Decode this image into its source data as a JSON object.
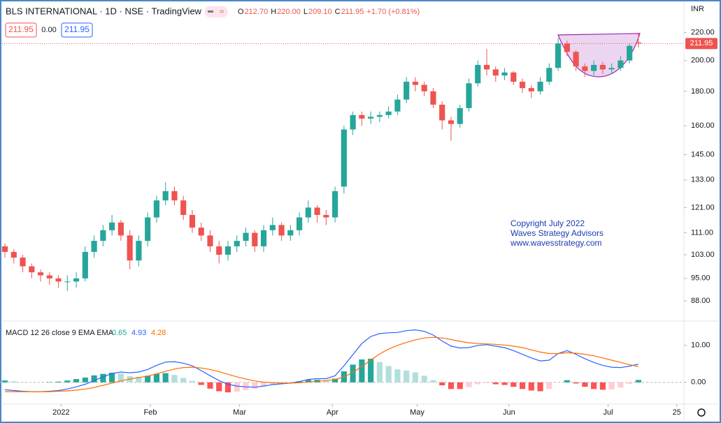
{
  "header": {
    "symbol": "BLS INTERNATIONAL · 1D · NSE · TradingView",
    "ohlc": [
      {
        "key": "O",
        "value": "212.70"
      },
      {
        "key": "H",
        "value": "220.00"
      },
      {
        "key": "L",
        "value": "209.10"
      },
      {
        "key": "C",
        "value": "211.95"
      }
    ],
    "change": "+1.70 (+0.81%)",
    "spread": "0.00",
    "currency": "INR"
  },
  "watermark": [
    "Copyright July 2022",
    "Waves Strategy Advisors",
    "www.wavesstrategy.com"
  ],
  "chart_data": [
    {
      "type": "candlestick",
      "log_scale": true,
      "up_color": "#26a69a",
      "down_color": "#ef5350",
      "price_line_color": "#ef5350",
      "xlim": [
        -0.55,
        76.1
      ],
      "xticks": [
        {
          "value": 6.3,
          "label": "2022"
        },
        {
          "value": 16.3,
          "label": "Feb"
        },
        {
          "value": 26.3,
          "label": "Mar"
        },
        {
          "value": 36.7,
          "label": "Apr"
        },
        {
          "value": 46.2,
          "label": "May"
        },
        {
          "value": 56.5,
          "label": "Jun"
        },
        {
          "value": 67.6,
          "label": "Jul"
        },
        {
          "value": 75.3,
          "label": "25"
        }
      ],
      "ylim": [
        82.5,
        243
      ],
      "yticks": [
        {
          "value": 88,
          "label": "88.00"
        },
        {
          "value": 95,
          "label": "95.00"
        },
        {
          "value": 103,
          "label": "103.00"
        },
        {
          "value": 111,
          "label": "111.00"
        },
        {
          "value": 121,
          "label": "121.00"
        },
        {
          "value": 133,
          "label": "133.00"
        },
        {
          "value": 145,
          "label": "145.00"
        },
        {
          "value": 160,
          "label": "160.00"
        },
        {
          "value": 180,
          "label": "180.00"
        },
        {
          "value": 200,
          "label": "200.00"
        },
        {
          "value": 220,
          "label": "220.00"
        }
      ],
      "open": [
        106,
        104,
        102,
        99,
        97,
        96,
        95,
        94,
        94,
        95,
        104,
        108,
        112,
        115,
        110,
        101,
        108,
        117,
        124,
        128,
        124,
        118,
        113,
        110,
        106,
        103,
        106,
        108,
        111,
        106,
        112,
        114,
        110,
        112,
        117,
        121,
        118,
        117,
        130,
        158,
        166,
        164,
        165,
        166,
        168,
        175,
        186,
        184,
        180,
        172,
        163,
        161,
        170,
        185,
        197,
        194,
        190,
        192,
        186,
        182,
        180,
        186,
        195,
        212,
        206,
        196,
        193,
        197,
        194,
        195,
        200,
        212.7
      ],
      "high": [
        107,
        105,
        103,
        100,
        98,
        97,
        96,
        96,
        97,
        106,
        110,
        114,
        118,
        116,
        112,
        110,
        119,
        126,
        132,
        130,
        126,
        120,
        115,
        112,
        108,
        108,
        110,
        113,
        112,
        114,
        117,
        115,
        114,
        119,
        124,
        122,
        120,
        130,
        160,
        168,
        168,
        168,
        168,
        171,
        178,
        189,
        189,
        186,
        182,
        174,
        165,
        172,
        188,
        200,
        208,
        196,
        195,
        193,
        188,
        184,
        189,
        198,
        216,
        214,
        207,
        198,
        200,
        199,
        198,
        203,
        212,
        220
      ],
      "low": [
        102,
        100,
        97,
        95,
        94,
        93,
        92,
        91,
        92,
        94,
        102,
        106,
        110,
        108,
        98,
        99,
        106,
        115,
        122,
        122,
        116,
        111,
        108,
        104,
        100,
        101,
        104,
        106,
        104,
        104,
        110,
        108,
        108,
        110,
        115,
        115,
        114,
        115,
        127,
        155,
        160,
        161,
        162,
        164,
        166,
        173,
        180,
        177,
        170,
        158,
        152,
        159,
        168,
        183,
        190,
        186,
        187,
        184,
        179,
        176,
        178,
        184,
        193,
        203,
        193,
        189,
        190,
        191,
        191,
        193,
        198,
        209.1
      ],
      "close": [
        104,
        102,
        99,
        97,
        96,
        95,
        94,
        94,
        95,
        104,
        108,
        112,
        115,
        110,
        101,
        108,
        117,
        124,
        128,
        124,
        118,
        113,
        110,
        106,
        103,
        106,
        108,
        111,
        106,
        112,
        114,
        110,
        112,
        117,
        121,
        118,
        117,
        128,
        158,
        166,
        164,
        165,
        166,
        168,
        175,
        186,
        184,
        180,
        172,
        163,
        161,
        170,
        185,
        197,
        194,
        190,
        192,
        186,
        182,
        180,
        186,
        195,
        212,
        206,
        196,
        193,
        197,
        194,
        195,
        200,
        210.25,
        211.95
      ]
    },
    {
      "type": "macd",
      "title": "MACD 12 26 close 9 EMA EMA",
      "ylim": [
        -5.7,
        16.2
      ],
      "yticks": [
        {
          "value": 0,
          "label": "0.00"
        },
        {
          "value": 10,
          "label": "10.00"
        }
      ],
      "series": [
        {
          "color": "#26a69a",
          "light_color": "#b2dfdb",
          "down_color": "#ff5252",
          "down_light_color": "#ffcdd2",
          "style": "histogram",
          "values": [
            0.5,
            0.3,
            0.1,
            0,
            0,
            0.1,
            0.2,
            0.5,
            0.9,
            1.3,
            1.9,
            2.3,
            2.6,
            2.4,
            1.7,
            1.5,
            1.8,
            2.3,
            2.5,
            2,
            1.2,
            0.4,
            -0.7,
            -1.7,
            -2.4,
            -2.7,
            -2.5,
            -2.1,
            -1.7,
            -1.1,
            -0.5,
            -0.2,
            0,
            0.3,
            0.7,
            0.7,
            0.5,
            1,
            3,
            4.8,
            6.2,
            6.4,
            5.5,
            4.4,
            3.5,
            3.2,
            2.7,
            1.8,
            0.6,
            -0.8,
            -1.8,
            -1.8,
            -1.3,
            -0.5,
            -0.2,
            -0.5,
            -0.7,
            -1.2,
            -1.8,
            -2.2,
            -2.4,
            -1.8,
            0,
            0.6,
            -0.3,
            -1.2,
            -1.8,
            -2,
            -1.9,
            -1.4,
            -0.4,
            0.65
          ]
        },
        {
          "color": "#2962ff",
          "style": "line",
          "values": [
            -2,
            -2.2,
            -2.4,
            -2.5,
            -2.5,
            -2.4,
            -2.2,
            -1.8,
            -1.2,
            -0.5,
            0.5,
            1.5,
            2.4,
            2.8,
            2.6,
            2.8,
            3.5,
            4.6,
            5.5,
            5.6,
            5.2,
            4.5,
            3.2,
            1.8,
            0.5,
            -0.5,
            -1,
            -1.2,
            -1.3,
            -1,
            -0.6,
            -0.4,
            -0.2,
            0.2,
            0.8,
            1,
            1,
            1.8,
            4.5,
            7.5,
            10.5,
            12.4,
            13.2,
            13.4,
            13.5,
            14,
            14.2,
            13.8,
            12.8,
            11.2,
            9.8,
            9.3,
            9.4,
            10,
            10.2,
            9.8,
            9.4,
            8.6,
            7.6,
            6.6,
            5.8,
            6,
            7.8,
            8.6,
            7.6,
            6.4,
            5.4,
            4.6,
            4.1,
            4,
            4.4,
            4.93
          ]
        },
        {
          "color": "#ff6d00",
          "style": "line",
          "values": [
            -2.5,
            -2.5,
            -2.5,
            -2.5,
            -2.5,
            -2.5,
            -2.4,
            -2.3,
            -2.1,
            -1.8,
            -1.4,
            -0.8,
            -0.2,
            0.4,
            0.9,
            1.3,
            1.7,
            2.3,
            3,
            3.6,
            4,
            4.1,
            3.9,
            3.5,
            2.9,
            2.2,
            1.5,
            0.9,
            0.4,
            0.1,
            -0.1,
            -0.2,
            -0.2,
            -0.1,
            0.1,
            0.3,
            0.5,
            0.8,
            1.5,
            2.7,
            4.3,
            6,
            7.7,
            9,
            10,
            10.8,
            11.5,
            12,
            12.2,
            12,
            11.6,
            11.1,
            10.7,
            10.5,
            10.4,
            10.3,
            10.1,
            9.8,
            9.4,
            8.8,
            8.2,
            7.8,
            7.8,
            8,
            7.9,
            7.6,
            7.2,
            6.6,
            6,
            5.4,
            4.8,
            4.28
          ]
        }
      ]
    }
  ]
}
